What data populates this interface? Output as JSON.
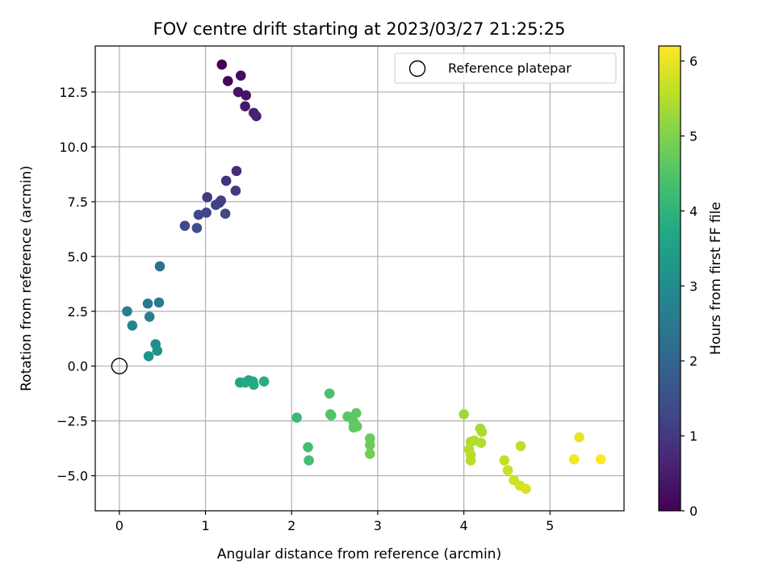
{
  "chart_data": {
    "type": "scatter",
    "title": "FOV centre drift starting at 2023/03/27 21:25:25",
    "xlabel": "Angular distance from reference (arcmin)",
    "ylabel": "Rotation from reference (arcmin)",
    "xlim": [
      -0.28,
      5.86
    ],
    "ylim": [
      -6.6,
      14.6
    ],
    "xticks": [
      0,
      1,
      2,
      3,
      4,
      5
    ],
    "xtick_labels": [
      "0",
      "1",
      "2",
      "3",
      "4",
      "5"
    ],
    "yticks": [
      -5.0,
      -2.5,
      0.0,
      2.5,
      5.0,
      7.5,
      10.0,
      12.5
    ],
    "ytick_labels": [
      "−5.0",
      "−2.5",
      "0.0",
      "2.5",
      "5.0",
      "7.5",
      "10.0",
      "12.5"
    ],
    "grid": true,
    "legend_position": "top-right",
    "legend_entries": [
      "Reference platepar"
    ],
    "colormap": "viridis",
    "colorbar_label": "Hours from first FF file",
    "colorbar_range": [
      0,
      6.2
    ],
    "colorbar_ticks": [
      0,
      1,
      2,
      3,
      4,
      5,
      6
    ],
    "colorbar_tick_labels": [
      "0",
      "1",
      "2",
      "3",
      "4",
      "5",
      "6"
    ],
    "reference_point": {
      "x": 0,
      "y": 0
    },
    "points": [
      {
        "x": 1.19,
        "y": 13.75,
        "c": 0.0
      },
      {
        "x": 1.26,
        "y": 13.0,
        "c": 0.1
      },
      {
        "x": 1.41,
        "y": 13.25,
        "c": 0.2
      },
      {
        "x": 1.38,
        "y": 12.5,
        "c": 0.3
      },
      {
        "x": 1.47,
        "y": 12.35,
        "c": 0.35
      },
      {
        "x": 1.46,
        "y": 11.85,
        "c": 0.45
      },
      {
        "x": 1.56,
        "y": 11.55,
        "c": 0.55
      },
      {
        "x": 1.59,
        "y": 11.4,
        "c": 0.6
      },
      {
        "x": 1.36,
        "y": 8.9,
        "c": 0.8
      },
      {
        "x": 1.24,
        "y": 8.45,
        "c": 0.9
      },
      {
        "x": 1.35,
        "y": 8.0,
        "c": 1.0
      },
      {
        "x": 1.02,
        "y": 7.7,
        "c": 1.05
      },
      {
        "x": 1.18,
        "y": 7.55,
        "c": 1.1
      },
      {
        "x": 1.16,
        "y": 7.45,
        "c": 1.15
      },
      {
        "x": 1.12,
        "y": 7.35,
        "c": 1.2
      },
      {
        "x": 1.01,
        "y": 7.0,
        "c": 1.25
      },
      {
        "x": 0.92,
        "y": 6.9,
        "c": 1.3
      },
      {
        "x": 1.23,
        "y": 6.95,
        "c": 1.35
      },
      {
        "x": 0.76,
        "y": 6.4,
        "c": 1.4
      },
      {
        "x": 0.9,
        "y": 6.3,
        "c": 1.5
      },
      {
        "x": 0.47,
        "y": 4.55,
        "c": 2.3
      },
      {
        "x": 0.33,
        "y": 2.85,
        "c": 2.5
      },
      {
        "x": 0.46,
        "y": 2.9,
        "c": 2.55
      },
      {
        "x": 0.09,
        "y": 2.5,
        "c": 2.65
      },
      {
        "x": 0.35,
        "y": 2.25,
        "c": 2.7
      },
      {
        "x": 0.15,
        "y": 1.85,
        "c": 2.75
      },
      {
        "x": 0.42,
        "y": 1.0,
        "c": 3.0
      },
      {
        "x": 0.44,
        "y": 0.7,
        "c": 3.1
      },
      {
        "x": 0.34,
        "y": 0.45,
        "c": 3.2
      },
      {
        "x": 1.4,
        "y": -0.75,
        "c": 3.6
      },
      {
        "x": 1.5,
        "y": -0.65,
        "c": 3.65
      },
      {
        "x": 1.55,
        "y": -0.7,
        "c": 3.7
      },
      {
        "x": 1.46,
        "y": -0.75,
        "c": 3.75
      },
      {
        "x": 1.56,
        "y": -0.85,
        "c": 3.8
      },
      {
        "x": 1.68,
        "y": -0.7,
        "c": 3.85
      },
      {
        "x": 2.06,
        "y": -2.35,
        "c": 4.2
      },
      {
        "x": 2.19,
        "y": -3.7,
        "c": 4.3
      },
      {
        "x": 2.2,
        "y": -4.3,
        "c": 4.35
      },
      {
        "x": 2.44,
        "y": -1.25,
        "c": 4.4
      },
      {
        "x": 2.45,
        "y": -2.2,
        "c": 4.45
      },
      {
        "x": 2.46,
        "y": -2.25,
        "c": 4.5
      },
      {
        "x": 2.65,
        "y": -2.3,
        "c": 4.55
      },
      {
        "x": 2.75,
        "y": -2.15,
        "c": 4.6
      },
      {
        "x": 2.72,
        "y": -2.55,
        "c": 4.62
      },
      {
        "x": 2.72,
        "y": -2.8,
        "c": 4.65
      },
      {
        "x": 2.76,
        "y": -2.75,
        "c": 4.7
      },
      {
        "x": 2.91,
        "y": -3.3,
        "c": 4.75
      },
      {
        "x": 2.91,
        "y": -3.6,
        "c": 4.8
      },
      {
        "x": 2.91,
        "y": -4.0,
        "c": 4.85
      },
      {
        "x": 4.0,
        "y": -2.2,
        "c": 5.3
      },
      {
        "x": 4.19,
        "y": -2.85,
        "c": 5.35
      },
      {
        "x": 4.21,
        "y": -3.0,
        "c": 5.4
      },
      {
        "x": 4.08,
        "y": -3.45,
        "c": 5.42
      },
      {
        "x": 4.12,
        "y": -3.4,
        "c": 5.45
      },
      {
        "x": 4.2,
        "y": -3.5,
        "c": 5.47
      },
      {
        "x": 4.06,
        "y": -3.8,
        "c": 5.5
      },
      {
        "x": 4.08,
        "y": -4.05,
        "c": 5.52
      },
      {
        "x": 4.08,
        "y": -4.3,
        "c": 5.55
      },
      {
        "x": 4.66,
        "y": -3.65,
        "c": 5.6
      },
      {
        "x": 4.47,
        "y": -4.3,
        "c": 5.65
      },
      {
        "x": 4.51,
        "y": -4.75,
        "c": 5.7
      },
      {
        "x": 4.58,
        "y": -5.2,
        "c": 5.75
      },
      {
        "x": 4.65,
        "y": -5.45,
        "c": 5.8
      },
      {
        "x": 4.72,
        "y": -5.6,
        "c": 5.85
      },
      {
        "x": 5.34,
        "y": -3.25,
        "c": 6.0
      },
      {
        "x": 5.28,
        "y": -4.25,
        "c": 6.1
      },
      {
        "x": 5.59,
        "y": -4.25,
        "c": 6.2
      }
    ]
  }
}
